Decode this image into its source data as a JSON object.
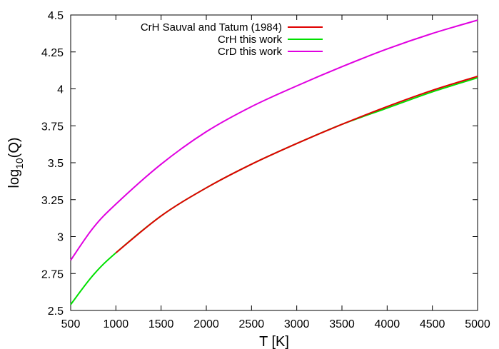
{
  "chart_data": {
    "type": "line",
    "title": "",
    "xlabel": "T [K]",
    "ylabel_base": "log",
    "ylabel_sub": "10",
    "ylabel_rest": "(Q)",
    "xlim": [
      500,
      5000
    ],
    "ylim": [
      2.5,
      4.5
    ],
    "x_ticks": [
      500,
      1000,
      1500,
      2000,
      2500,
      3000,
      3500,
      4000,
      4500,
      5000
    ],
    "x_tick_labels": [
      "500",
      "1000",
      "1500",
      "2000",
      "2500",
      "3000",
      "3500",
      "4000",
      "4500",
      "5000"
    ],
    "y_ticks": [
      2.5,
      2.75,
      3,
      3.25,
      3.5,
      3.75,
      4,
      4.25,
      4.5
    ],
    "y_tick_labels": [
      "2.5",
      "2.75",
      "3",
      "3.25",
      "3.5",
      "3.75",
      "4",
      "4.25",
      "4.5"
    ],
    "grid": false,
    "legend_position": "top-left",
    "series": [
      {
        "name": "CrH Sauval and Tatum (1984)",
        "color": "#e00000",
        "x": [
          1000,
          1500,
          2000,
          2500,
          3000,
          3500,
          4000,
          4500,
          5000
        ],
        "y": [
          2.89,
          3.14,
          3.33,
          3.49,
          3.63,
          3.76,
          3.88,
          3.99,
          4.085
        ]
      },
      {
        "name": "CrH this work",
        "color": "#00e000",
        "x": [
          500,
          750,
          1000,
          1500,
          2000,
          2500,
          3000,
          3500,
          4000,
          4500,
          5000
        ],
        "y": [
          2.54,
          2.74,
          2.89,
          3.14,
          3.33,
          3.49,
          3.63,
          3.76,
          3.87,
          3.98,
          4.075
        ]
      },
      {
        "name": "CrD this work",
        "color": "#e000e0",
        "x": [
          500,
          750,
          1000,
          1500,
          2000,
          2500,
          3000,
          3500,
          4000,
          4500,
          5000
        ],
        "y": [
          2.84,
          3.06,
          3.22,
          3.49,
          3.71,
          3.88,
          4.02,
          4.15,
          4.27,
          4.375,
          4.465
        ]
      }
    ]
  }
}
